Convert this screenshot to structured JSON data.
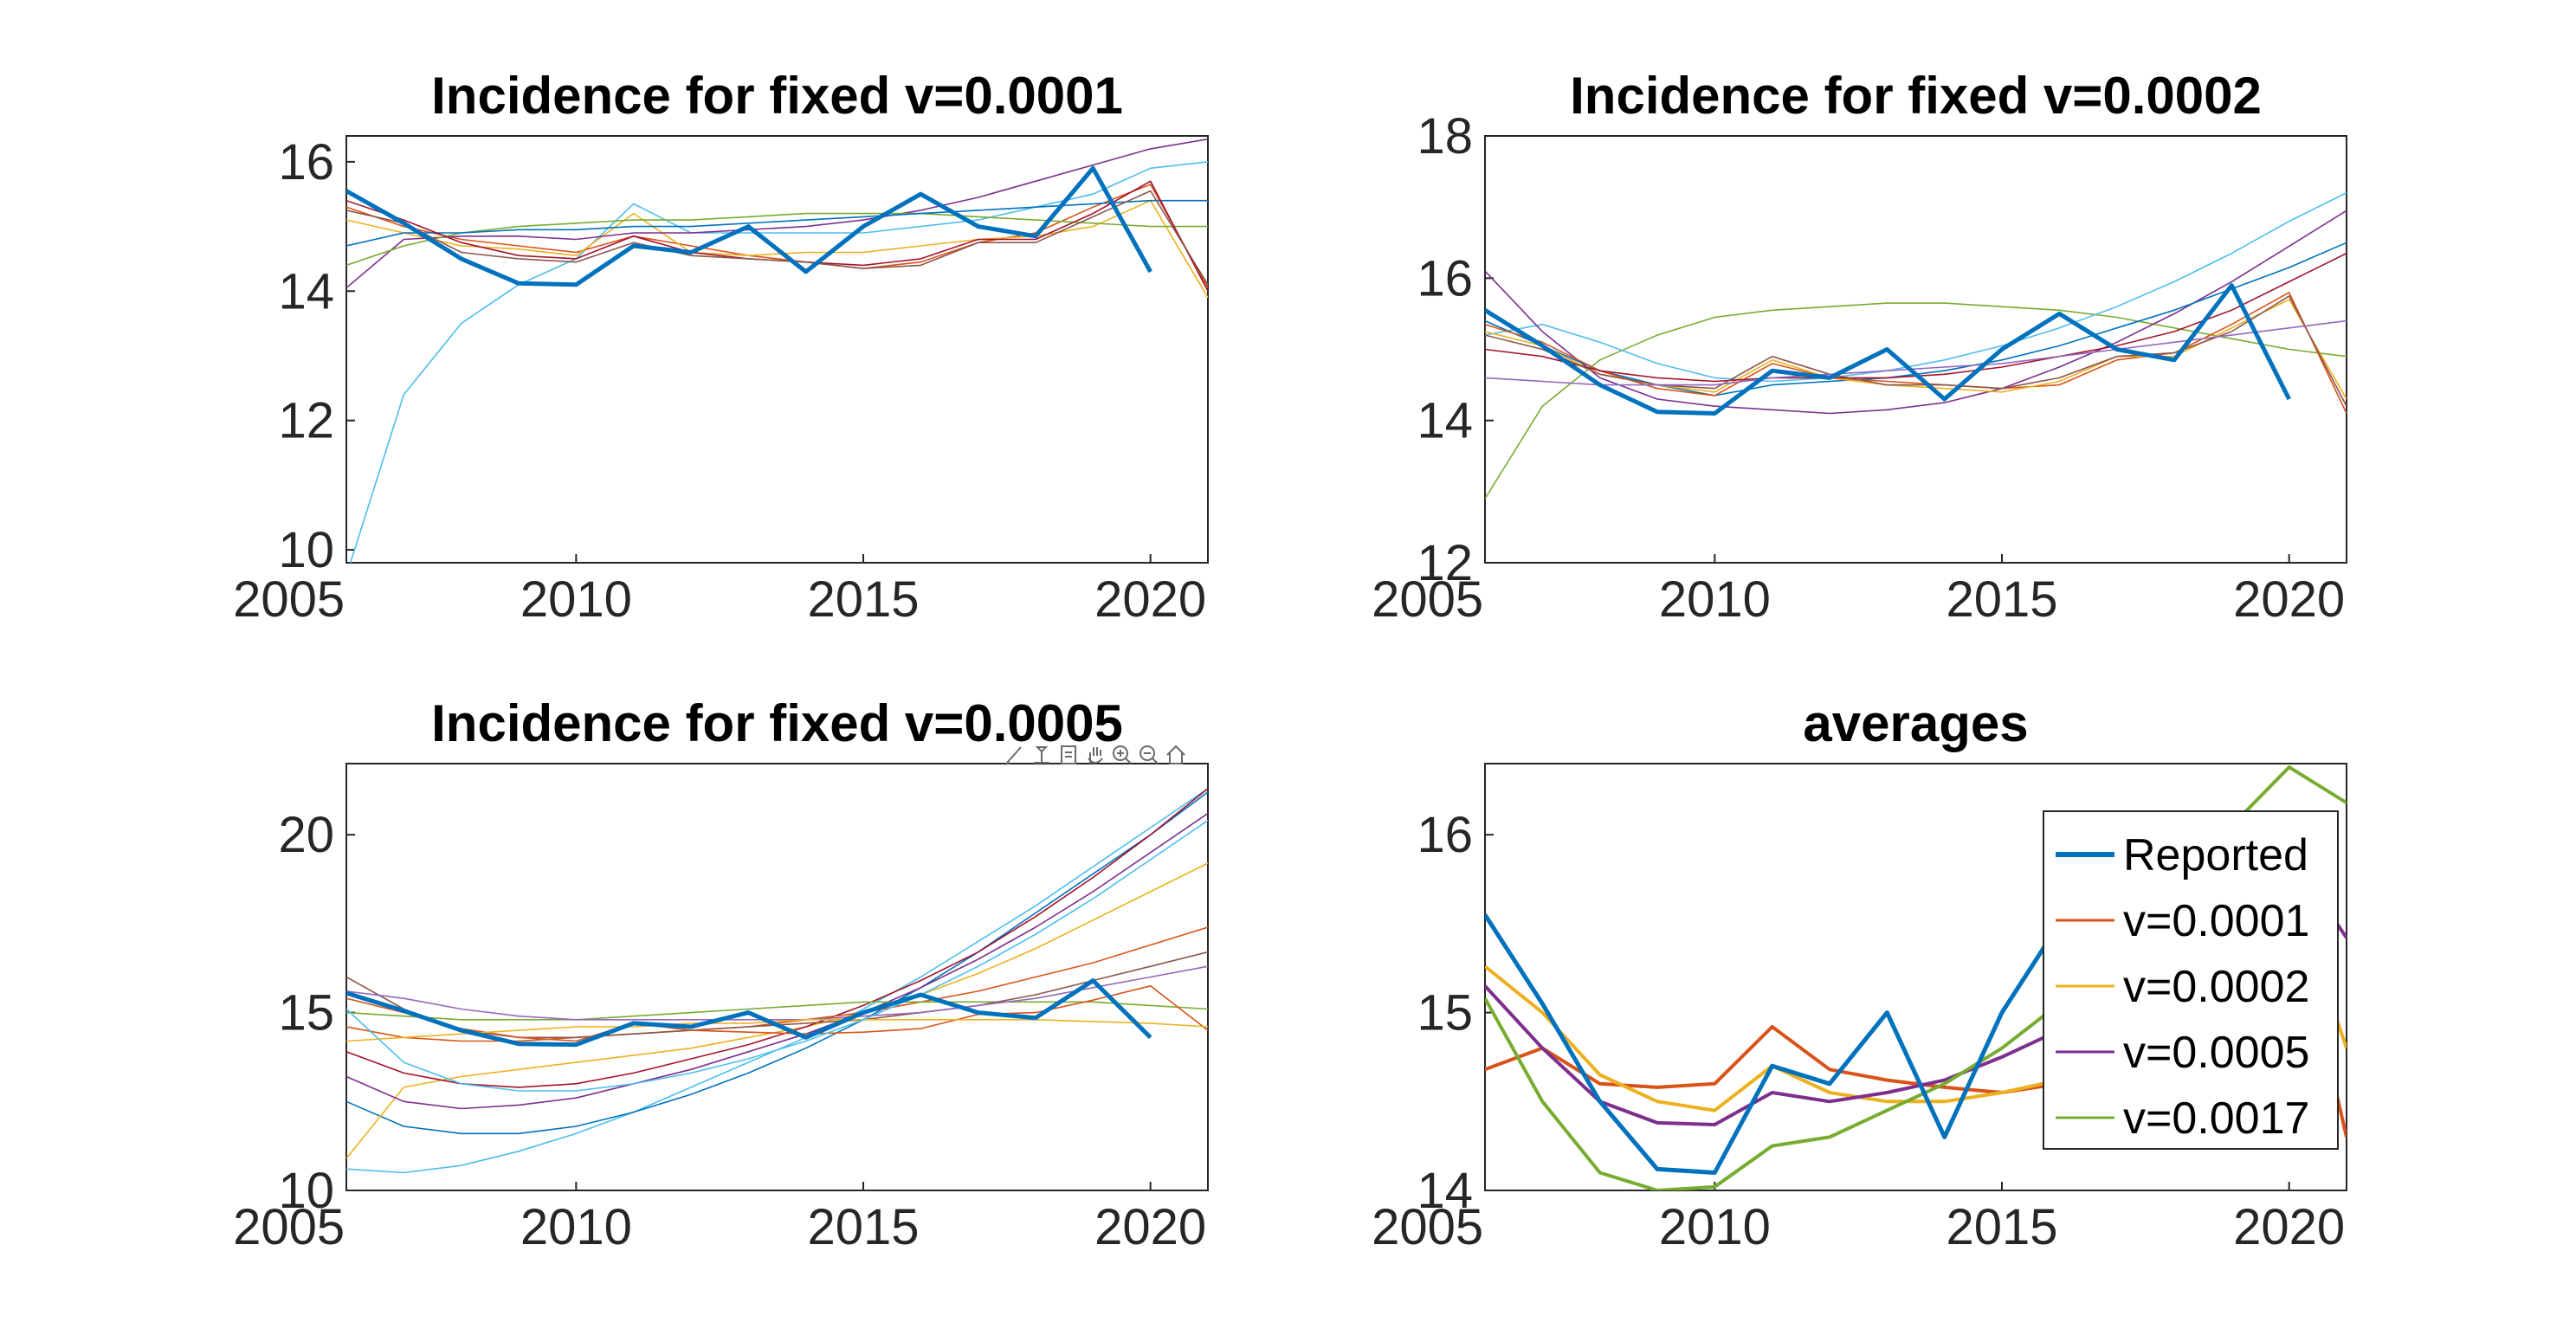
{
  "figure": {
    "toolbar_icons": [
      "brush-icon",
      "data-tips-icon",
      "export-icon",
      "pan-icon",
      "zoom-in-icon",
      "zoom-out-icon",
      "home-icon"
    ]
  },
  "chart_data": [
    {
      "type": "line",
      "title": "Incidence for fixed v=0.0001",
      "xlim": [
        2006,
        2021
      ],
      "ylim": [
        9.8,
        16.4
      ],
      "x_ticks": [
        2005,
        2010,
        2015,
        2020
      ],
      "y_ticks": [
        10,
        12,
        14,
        16
      ],
      "grid": false,
      "reported": {
        "x": [
          2006,
          2007,
          2008,
          2009,
          2010,
          2011,
          2012,
          2013,
          2014,
          2015,
          2016,
          2017,
          2018,
          2019,
          2020
        ],
        "y": [
          15.55,
          15.05,
          14.5,
          14.12,
          14.1,
          14.7,
          14.6,
          15.0,
          14.3,
          15.0,
          15.5,
          15.0,
          14.85,
          15.9,
          14.3
        ]
      },
      "simulations": [
        {
          "color": "#4dbeee",
          "y": [
            9.6,
            12.4,
            13.5,
            14.1,
            14.5,
            15.35,
            14.9,
            14.9,
            14.9,
            14.9,
            15.0,
            15.1,
            15.3,
            15.5,
            15.9,
            16.0
          ]
        },
        {
          "color": "#d95319",
          "y": [
            15.3,
            15.0,
            14.8,
            14.7,
            14.6,
            14.85,
            14.7,
            14.55,
            14.45,
            14.35,
            14.45,
            14.75,
            14.9,
            15.3,
            15.65,
            14.05
          ]
        },
        {
          "color": "#edb120",
          "y": [
            15.1,
            14.9,
            14.7,
            14.65,
            14.55,
            15.2,
            14.6,
            14.55,
            14.6,
            14.6,
            14.7,
            14.8,
            14.85,
            15.0,
            15.4,
            13.9
          ]
        },
        {
          "color": "#7e2f8e",
          "y": [
            14.05,
            14.8,
            14.85,
            14.85,
            14.8,
            14.9,
            14.9,
            14.95,
            15.0,
            15.1,
            15.25,
            15.45,
            15.7,
            15.95,
            16.2,
            16.35
          ]
        },
        {
          "color": "#77ac30",
          "y": [
            14.4,
            14.7,
            14.9,
            15.0,
            15.05,
            15.1,
            15.1,
            15.15,
            15.2,
            15.2,
            15.2,
            15.15,
            15.1,
            15.05,
            15.0,
            15.0
          ]
        },
        {
          "color": "#0072bd",
          "y": [
            14.7,
            14.9,
            14.9,
            14.95,
            14.95,
            15.0,
            15.0,
            15.05,
            15.1,
            15.15,
            15.2,
            15.25,
            15.3,
            15.35,
            15.4,
            15.4
          ]
        },
        {
          "color": "#a2142f",
          "y": [
            15.4,
            15.1,
            14.75,
            14.55,
            14.5,
            14.85,
            14.6,
            14.5,
            14.45,
            14.4,
            14.5,
            14.8,
            14.8,
            15.2,
            15.7,
            14.0
          ]
        },
        {
          "color": "#8c564b",
          "y": [
            15.25,
            15.05,
            14.6,
            14.5,
            14.45,
            14.75,
            14.55,
            14.5,
            14.45,
            14.35,
            14.4,
            14.75,
            14.75,
            15.15,
            15.55,
            14.1
          ]
        }
      ]
    },
    {
      "type": "line",
      "title": "Incidence for fixed v=0.0002",
      "xlim": [
        2006,
        2021
      ],
      "ylim": [
        12,
        18
      ],
      "x_ticks": [
        2005,
        2010,
        2015,
        2020
      ],
      "y_ticks": [
        12,
        14,
        16,
        18
      ],
      "grid": false,
      "reported": {
        "x": [
          2006,
          2007,
          2008,
          2009,
          2010,
          2011,
          2012,
          2013,
          2014,
          2015,
          2016,
          2017,
          2018,
          2019,
          2020
        ],
        "y": [
          15.55,
          15.05,
          14.5,
          14.12,
          14.1,
          14.7,
          14.6,
          15.0,
          14.3,
          15.0,
          15.5,
          15.0,
          14.85,
          15.9,
          14.3
        ]
      },
      "simulations": [
        {
          "color": "#77ac30",
          "y": [
            12.9,
            14.2,
            14.85,
            15.2,
            15.45,
            15.55,
            15.6,
            15.65,
            15.65,
            15.6,
            15.55,
            15.45,
            15.3,
            15.15,
            15.0,
            14.9
          ]
        },
        {
          "color": "#4dbeee",
          "y": [
            15.2,
            15.35,
            15.1,
            14.8,
            14.6,
            14.55,
            14.6,
            14.7,
            14.85,
            15.05,
            15.3,
            15.6,
            15.95,
            16.35,
            16.8,
            17.2
          ]
        },
        {
          "color": "#7e2f8e",
          "y": [
            16.1,
            15.25,
            14.6,
            14.3,
            14.2,
            14.15,
            14.1,
            14.15,
            14.25,
            14.45,
            14.75,
            15.1,
            15.5,
            15.95,
            16.45,
            16.95
          ]
        },
        {
          "color": "#0072bd",
          "y": [
            15.4,
            15.05,
            14.7,
            14.5,
            14.35,
            14.5,
            14.55,
            14.6,
            14.7,
            14.85,
            15.05,
            15.3,
            15.55,
            15.85,
            16.15,
            16.5
          ]
        },
        {
          "color": "#d95319",
          "y": [
            15.35,
            15.1,
            14.7,
            14.45,
            14.35,
            14.8,
            14.6,
            14.55,
            14.5,
            14.45,
            14.5,
            14.85,
            14.95,
            15.35,
            15.8,
            14.1
          ]
        },
        {
          "color": "#edb120",
          "y": [
            15.25,
            15.05,
            14.65,
            14.5,
            14.4,
            14.85,
            14.6,
            14.5,
            14.45,
            14.4,
            14.55,
            14.9,
            14.9,
            15.3,
            15.7,
            14.3
          ]
        },
        {
          "color": "#a2142f",
          "y": [
            15.0,
            14.9,
            14.7,
            14.6,
            14.55,
            14.6,
            14.6,
            14.6,
            14.65,
            14.75,
            14.9,
            15.05,
            15.25,
            15.55,
            15.95,
            16.35
          ]
        },
        {
          "color": "#8c564b",
          "y": [
            15.2,
            15.0,
            14.65,
            14.5,
            14.45,
            14.9,
            14.65,
            14.5,
            14.5,
            14.45,
            14.6,
            14.9,
            14.95,
            15.25,
            15.75,
            14.2
          ]
        },
        {
          "color": "#9467bd",
          "y": [
            14.6,
            14.55,
            14.5,
            14.5,
            14.5,
            14.6,
            14.65,
            14.7,
            14.75,
            14.8,
            14.9,
            15.0,
            15.1,
            15.2,
            15.3,
            15.4
          ]
        }
      ]
    },
    {
      "type": "line",
      "title": "Incidence for fixed v=0.0005",
      "xlim": [
        2006,
        2021
      ],
      "ylim": [
        10,
        22
      ],
      "x_ticks": [
        2005,
        2010,
        2015,
        2020
      ],
      "y_ticks": [
        10,
        15,
        20
      ],
      "grid": false,
      "reported": {
        "x": [
          2006,
          2007,
          2008,
          2009,
          2010,
          2011,
          2012,
          2013,
          2014,
          2015,
          2016,
          2017,
          2018,
          2019,
          2020
        ],
        "y": [
          15.55,
          15.05,
          14.5,
          14.12,
          14.1,
          14.7,
          14.6,
          15.0,
          14.3,
          15.0,
          15.5,
          15.0,
          14.85,
          15.9,
          14.3
        ]
      },
      "simulations": [
        {
          "color": "#4dbeee",
          "y": [
            10.6,
            10.5,
            10.7,
            11.1,
            11.6,
            12.2,
            12.9,
            13.6,
            14.3,
            15.1,
            16.0,
            17.0,
            18.0,
            19.1,
            20.2,
            21.3
          ]
        },
        {
          "color": "#0072bd",
          "y": [
            12.5,
            11.8,
            11.6,
            11.6,
            11.8,
            12.2,
            12.7,
            13.3,
            14.0,
            14.8,
            15.7,
            16.7,
            17.8,
            18.9,
            20.0,
            21.2
          ]
        },
        {
          "color": "#edb120",
          "y": [
            10.9,
            12.9,
            13.2,
            13.4,
            13.6,
            13.8,
            14.0,
            14.3,
            14.6,
            15.0,
            15.5,
            16.1,
            16.8,
            17.6,
            18.4,
            19.2
          ]
        },
        {
          "color": "#7e2f8e",
          "y": [
            13.2,
            12.5,
            12.3,
            12.4,
            12.6,
            13.0,
            13.4,
            13.9,
            14.4,
            15.0,
            15.7,
            16.5,
            17.4,
            18.4,
            19.5,
            20.6
          ]
        },
        {
          "color": "#a2142f",
          "y": [
            13.9,
            13.3,
            13.0,
            12.9,
            13.0,
            13.3,
            13.7,
            14.1,
            14.6,
            15.2,
            15.9,
            16.7,
            17.7,
            18.8,
            20.0,
            21.3
          ]
        },
        {
          "color": "#d95319",
          "y": [
            14.6,
            14.3,
            14.2,
            14.2,
            14.3,
            14.4,
            14.5,
            14.6,
            14.8,
            15.0,
            15.3,
            15.6,
            16.0,
            16.4,
            16.9,
            17.4
          ]
        },
        {
          "color": "#77ac30",
          "y": [
            15.0,
            14.9,
            14.8,
            14.8,
            14.8,
            14.9,
            15.0,
            15.1,
            15.2,
            15.3,
            15.3,
            15.3,
            15.3,
            15.3,
            15.2,
            15.1
          ]
        },
        {
          "color": "#8c564b",
          "y": [
            16.0,
            15.1,
            14.5,
            14.3,
            14.3,
            14.4,
            14.5,
            14.6,
            14.7,
            14.8,
            15.0,
            15.2,
            15.5,
            15.9,
            16.3,
            16.7
          ]
        },
        {
          "color": "#9467bd",
          "y": [
            15.6,
            15.4,
            15.1,
            14.9,
            14.8,
            14.8,
            14.8,
            14.8,
            14.8,
            14.9,
            15.0,
            15.2,
            15.4,
            15.7,
            16.0,
            16.3
          ]
        },
        {
          "color": "#d95319",
          "y": [
            15.4,
            15.0,
            14.55,
            14.3,
            14.2,
            14.7,
            14.5,
            14.45,
            14.4,
            14.45,
            14.55,
            14.95,
            15.0,
            15.35,
            15.75,
            14.5
          ]
        },
        {
          "color": "#edb120",
          "y": [
            14.2,
            14.3,
            14.4,
            14.5,
            14.6,
            14.6,
            14.7,
            14.7,
            14.8,
            14.8,
            14.8,
            14.8,
            14.8,
            14.75,
            14.7,
            14.6
          ]
        },
        {
          "color": "#4dbeee",
          "y": [
            15.1,
            13.6,
            13.0,
            12.8,
            12.8,
            13.0,
            13.3,
            13.7,
            14.2,
            14.8,
            15.5,
            16.3,
            17.2,
            18.2,
            19.3,
            20.4
          ]
        }
      ]
    },
    {
      "type": "line",
      "title": "averages",
      "xlim": [
        2006,
        2021
      ],
      "ylim": [
        14,
        16.4
      ],
      "x_ticks": [
        2005,
        2010,
        2015,
        2020
      ],
      "y_ticks": [
        14,
        15,
        16
      ],
      "grid": false,
      "legend_location": "right",
      "series": [
        {
          "name": "Reported",
          "color": "#0072bd",
          "width": 3,
          "x": [
            2006,
            2007,
            2008,
            2009,
            2010,
            2011,
            2012,
            2013,
            2014,
            2015,
            2016,
            2017,
            2018,
            2019,
            2020
          ],
          "y": [
            15.55,
            15.05,
            14.5,
            14.12,
            14.1,
            14.7,
            14.6,
            15.0,
            14.3,
            15.0,
            15.5,
            15.0,
            14.85,
            15.9,
            14.3
          ]
        },
        {
          "name": "v=0.0001",
          "color": "#d95319",
          "width": 2,
          "x": [
            2006,
            2007,
            2008,
            2009,
            2010,
            2011,
            2012,
            2013,
            2014,
            2015,
            2016,
            2017,
            2018,
            2019,
            2020,
            2021
          ],
          "y": [
            14.68,
            14.8,
            14.6,
            14.58,
            14.6,
            14.92,
            14.68,
            14.62,
            14.58,
            14.55,
            14.6,
            14.78,
            14.85,
            15.2,
            15.7,
            14.3
          ]
        },
        {
          "name": "v=0.0002",
          "color": "#edb120",
          "width": 2,
          "x": [
            2006,
            2007,
            2008,
            2009,
            2010,
            2011,
            2012,
            2013,
            2014,
            2015,
            2016,
            2017,
            2018,
            2019,
            2020,
            2021
          ],
          "y": [
            15.26,
            15.0,
            14.65,
            14.5,
            14.45,
            14.7,
            14.55,
            14.5,
            14.5,
            14.55,
            14.62,
            14.8,
            14.95,
            15.3,
            15.75,
            14.8
          ]
        },
        {
          "name": "v=0.0005",
          "color": "#7e2f8e",
          "width": 2,
          "x": [
            2006,
            2007,
            2008,
            2009,
            2010,
            2011,
            2012,
            2013,
            2014,
            2015,
            2016,
            2017,
            2018,
            2019,
            2020,
            2021
          ],
          "y": [
            15.15,
            14.8,
            14.5,
            14.38,
            14.37,
            14.55,
            14.5,
            14.55,
            14.62,
            14.75,
            14.9,
            15.1,
            15.3,
            15.6,
            15.9,
            15.42
          ]
        },
        {
          "name": "v=0.0017",
          "color": "#77ac30",
          "width": 2,
          "x": [
            2006,
            2007,
            2008,
            2009,
            2010,
            2011,
            2012,
            2013,
            2014,
            2015,
            2016,
            2017,
            2018,
            2019,
            2020,
            2021
          ],
          "y": [
            15.08,
            14.5,
            14.1,
            14.0,
            14.02,
            14.25,
            14.3,
            14.45,
            14.6,
            14.8,
            15.05,
            15.35,
            15.7,
            16.05,
            16.38,
            16.18
          ]
        }
      ]
    }
  ]
}
